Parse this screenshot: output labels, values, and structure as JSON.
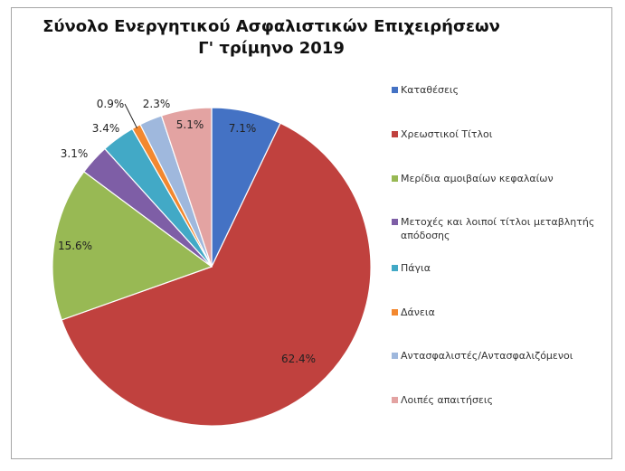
{
  "chart_data": {
    "type": "pie",
    "title": "Σύνολο Ενεργητικού Ασφαλιστικών Επιχειρήσεων",
    "subtitle": "Γ' τρίμηνο 2019",
    "legend_position": "right",
    "slices": [
      {
        "name": "Καταθέσεις",
        "value": 7.1,
        "label": "7.1%",
        "color": "#4472c4"
      },
      {
        "name": "Χρεωστικοί Τίτλοι",
        "value": 62.4,
        "label": "62.4%",
        "color": "#c0413e"
      },
      {
        "name": "Μερίδια αμοιβαίων κεφαλαίων",
        "value": 15.6,
        "label": "15.6%",
        "color": "#98b954"
      },
      {
        "name": "Μετοχές και λοιποί τίτλοι μεταβλητής απόδοσης",
        "value": 3.1,
        "label": "3.1%",
        "color": "#7e5ea6"
      },
      {
        "name": "Πάγια",
        "value": 3.4,
        "label": "3.4%",
        "color": "#42a9c6"
      },
      {
        "name": "Δάνεια",
        "value": 0.9,
        "label": "0.9%",
        "color": "#f3882f"
      },
      {
        "name": "Αντασφαλιστές/Αντασφαλιζόμενοι",
        "value": 2.3,
        "label": "2.3%",
        "color": "#9fb8dd"
      },
      {
        "name": "Λοιπές απαιτήσεις",
        "value": 5.1,
        "label": "5.1%",
        "color": "#e3a3a2"
      }
    ]
  }
}
